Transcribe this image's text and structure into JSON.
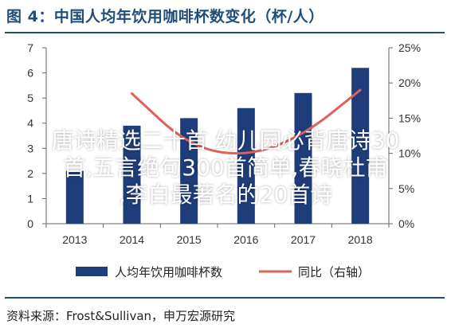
{
  "figure": {
    "title": "图 4：中国人均年饮用咖啡杯数变化（杯/人）",
    "source": "资料来源：Frost&Sullivan，申万宏源研究"
  },
  "overlay": {
    "lines": [
      "唐诗精选二十首 幼儿园必背唐诗30",
      "首,五言绝句300首简单,春晓杜甫",
      ",李白最著名的20首诗"
    ],
    "color": "#ffffff"
  },
  "chart_data": {
    "type": "bar",
    "categories": [
      "2013",
      "2014",
      "2015",
      "2016",
      "2017",
      "2018"
    ],
    "series": [
      {
        "name": "人均年饮用咖啡杯数",
        "type": "bar",
        "axis": "left",
        "color": "#1f3d7a",
        "values": [
          2.1,
          3.9,
          4.2,
          4.6,
          5.2,
          6.2
        ]
      },
      {
        "name": "同比（右轴）",
        "type": "line",
        "axis": "right",
        "color": "#e0605a",
        "values": [
          null,
          18.5,
          11.0,
          9.5,
          12.5,
          19.0
        ]
      }
    ],
    "y_left": {
      "min": 0,
      "max": 7,
      "ticks": [
        "0",
        "1",
        "2",
        "3",
        "4",
        "5",
        "6",
        "7"
      ]
    },
    "y_right": {
      "min": 0,
      "max": 25,
      "ticks": [
        "0%",
        "5%",
        "10%",
        "15%",
        "20%",
        "25%"
      ]
    },
    "legend_position": "bottom",
    "grid": false
  }
}
